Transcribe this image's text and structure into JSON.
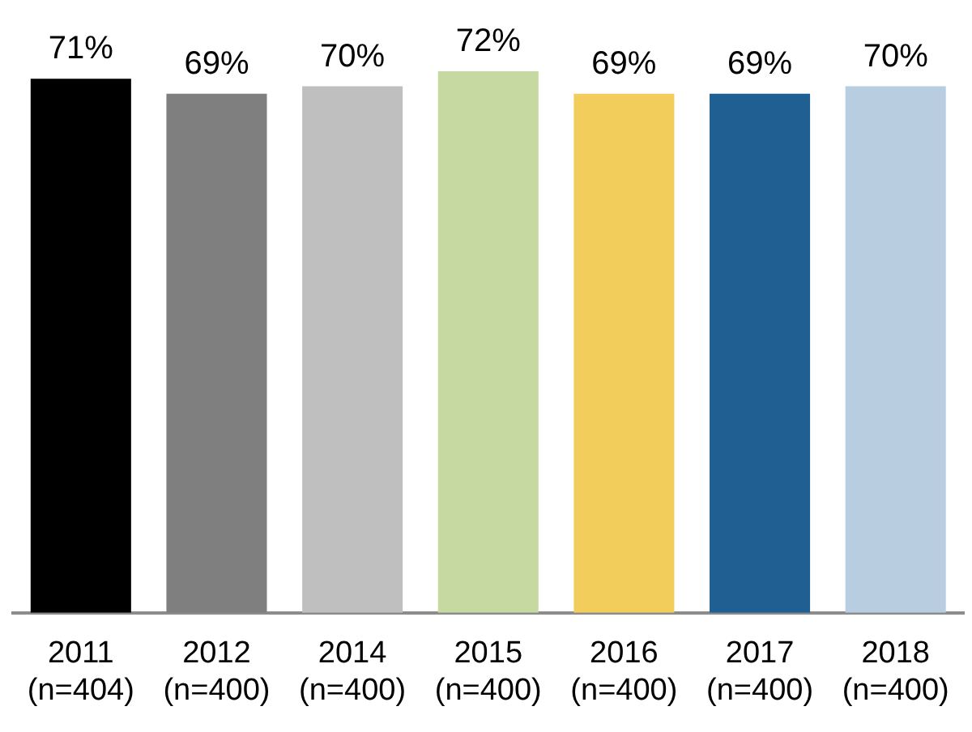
{
  "chart_data": {
    "type": "bar",
    "categories": [
      "2011\n(n=404)",
      "2012\n(n=400)",
      "2014\n(n=400)",
      "2015\n(n=400)",
      "2016\n(n=400)",
      "2017\n(n=400)",
      "2018\n(n=400)"
    ],
    "values": [
      71,
      69,
      70,
      72,
      69,
      69,
      70
    ],
    "colors": [
      "#000000",
      "#7f7f7f",
      "#bfbfbf",
      "#c6d9a0",
      "#f2cd5c",
      "#1f5f91",
      "#b9cde0"
    ],
    "ylim": [
      0,
      72
    ],
    "data_labels": true,
    "value_labels": [
      "71%",
      "69%",
      "70%",
      "72%",
      "69%",
      "69%",
      "70%"
    ],
    "grid": false,
    "legend": false,
    "tick_labels": "x"
  }
}
